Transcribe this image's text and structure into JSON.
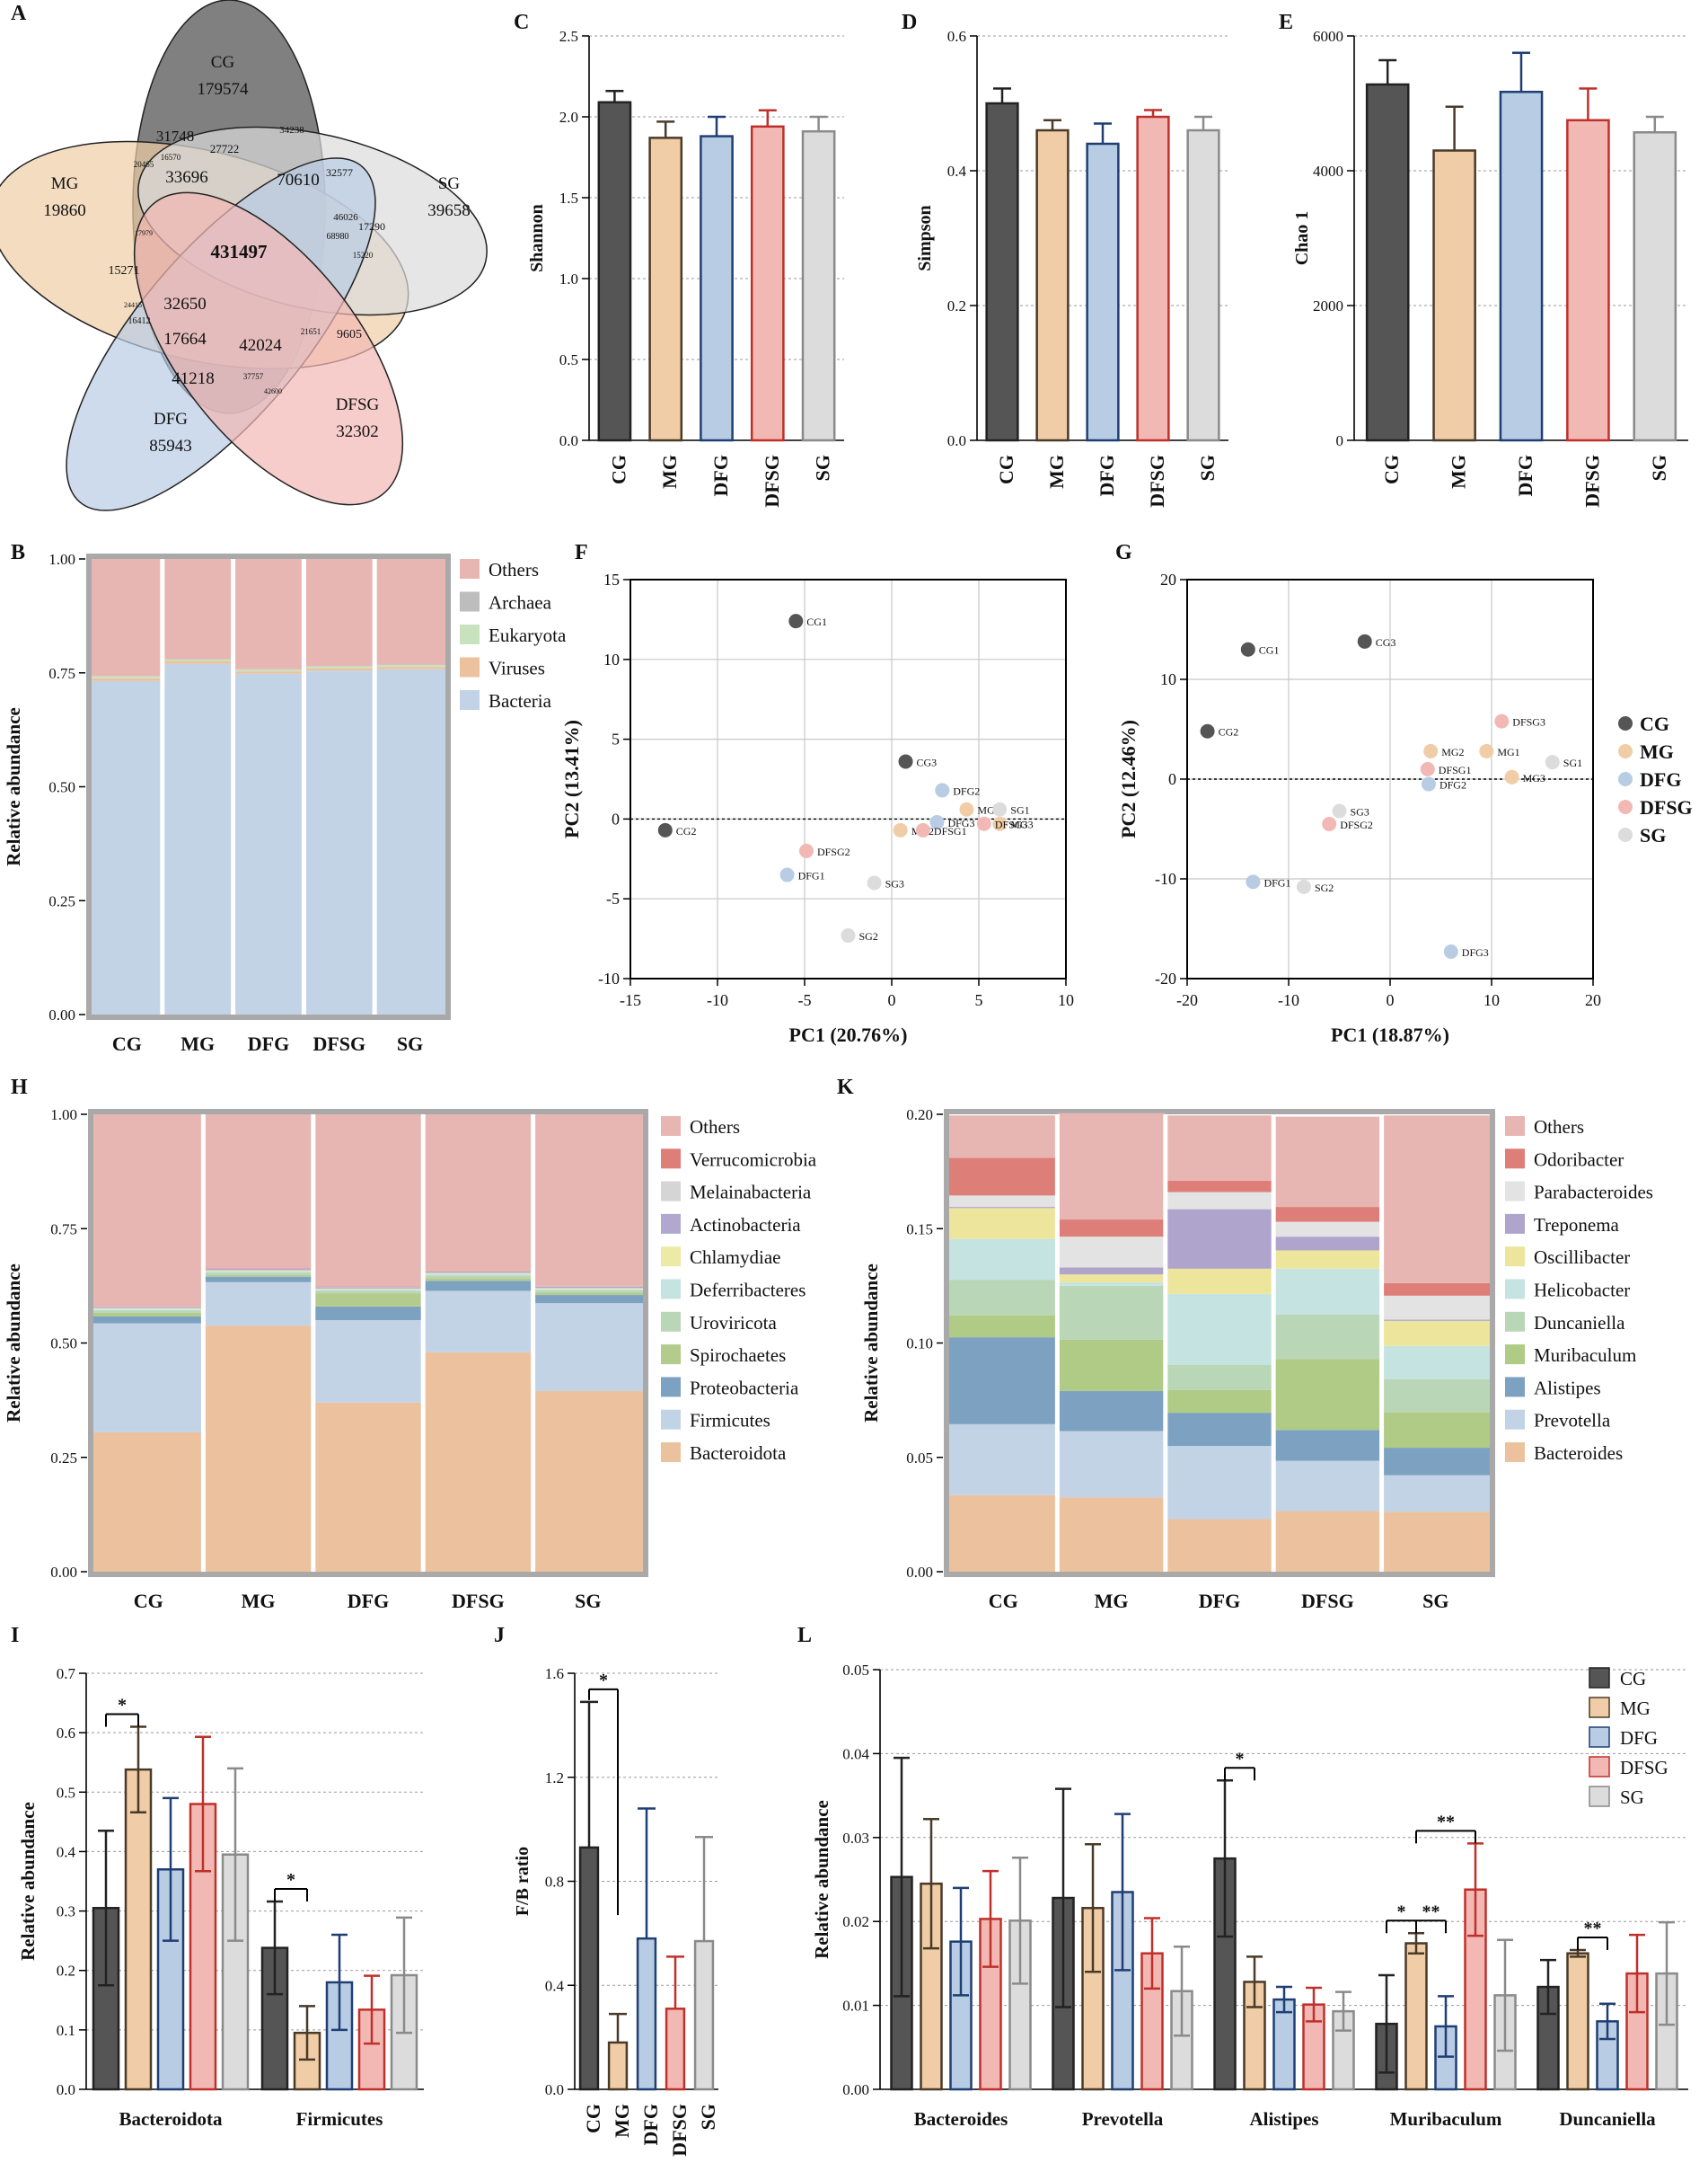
{
  "colors": {
    "CG": "#555555",
    "MG": "#F0CDA6",
    "DFG": "#B8CCE4",
    "DFSG": "#F2B8B4",
    "SG": "#DCDCDC",
    "CG_line": "#222222",
    "MG_line": "#4a3a28",
    "DFG_line": "#1f3f74",
    "DFSG_line": "#c0302b",
    "SG_line": "#8a8a8a",
    "Others": "#E8B6B2",
    "Archaea": "#BDBDBD",
    "Eukaryota": "#C9E2BE",
    "Viruses": "#EBC29D",
    "Bacteria": "#C3D3E6",
    "Verrucomicrobia": "#DE7E78",
    "Melainabacteria": "#D5D5D5",
    "Actinobacteria": "#B1A8CF",
    "Chlamydiae": "#EDEAA8",
    "Deferribacteres": "#C5E3E0",
    "Uroviricota": "#B9D6B7",
    "Spirochaetes": "#B3CC8D",
    "Proteobacteria": "#7DA2C1",
    "Firmicutes": "#C3D3E6",
    "Bacteroidota": "#EBC29D",
    "Odoribacter": "#DE7E78",
    "Parabacteroides": "#E3E3E3",
    "Treponema": "#AFA4CC",
    "Oscillibacter": "#EDE59B",
    "Helicobacter": "#C5E3E0",
    "Duncaniella": "#B9D6B7",
    "Muribaculum": "#AFCB85",
    "Alistipes": "#7DA2C1",
    "Prevotella": "#C3D3E6",
    "Bacteroides": "#EBC29D"
  },
  "groups": [
    "CG",
    "MG",
    "DFG",
    "DFSG",
    "SG"
  ],
  "venn": {
    "panel": "A",
    "sets": [
      {
        "name": "CG",
        "unique": "179574"
      },
      {
        "name": "MG",
        "unique": "19860"
      },
      {
        "name": "SG",
        "unique": "39658"
      },
      {
        "name": "DFG",
        "unique": "85943"
      },
      {
        "name": "DFSG",
        "unique": "32302"
      }
    ],
    "core": "431497",
    "others": [
      "31748",
      "27722",
      "34238",
      "33696",
      "70610",
      "32577",
      "20465",
      "16570",
      "17979",
      "15271",
      "46026",
      "17290",
      "68980",
      "15220",
      "24415",
      "32650",
      "16412",
      "17664",
      "42024",
      "21651",
      "9605",
      "41218",
      "37757",
      "42600"
    ]
  },
  "chart_data": [
    {
      "panel": "C",
      "type": "bar",
      "ylabel": "Shannon",
      "categories": [
        "CG",
        "MG",
        "DFG",
        "DFSG",
        "SG"
      ],
      "values": [
        2.09,
        1.87,
        1.88,
        1.94,
        1.91
      ],
      "errors": [
        0.07,
        0.1,
        0.12,
        0.1,
        0.09
      ],
      "ylim": [
        0,
        2.5
      ],
      "yticks": [
        "0.0",
        "0.5",
        "1.0",
        "1.5",
        "2.0",
        "2.5"
      ]
    },
    {
      "panel": "D",
      "type": "bar",
      "ylabel": "Simpson",
      "categories": [
        "CG",
        "MG",
        "DFG",
        "DFSG",
        "SG"
      ],
      "values": [
        0.5,
        0.46,
        0.44,
        0.48,
        0.46
      ],
      "errors": [
        0.022,
        0.015,
        0.03,
        0.01,
        0.02
      ],
      "ylim": [
        0,
        0.6
      ],
      "yticks": [
        "0.0",
        "0.2",
        "0.4",
        "0.6"
      ]
    },
    {
      "panel": "E",
      "type": "bar",
      "ylabel": "Chao 1",
      "categories": [
        "CG",
        "MG",
        "DFG",
        "DFSG",
        "SG"
      ],
      "values": [
        5280,
        4300,
        5170,
        4750,
        4570
      ],
      "errors": [
        360,
        650,
        580,
        470,
        230
      ],
      "ylim": [
        0,
        6000
      ],
      "yticks": [
        "0",
        "2000",
        "4000",
        "6000"
      ]
    },
    {
      "panel": "B",
      "type": "stacked-bar",
      "ylabel": "Relative abundance",
      "categories": [
        "CG",
        "MG",
        "DFG",
        "DFSG",
        "SG"
      ],
      "series": [
        {
          "name": "Bacteria",
          "values": [
            0.732,
            0.77,
            0.748,
            0.755,
            0.758
          ]
        },
        {
          "name": "Viruses",
          "values": [
            0.006,
            0.006,
            0.005,
            0.005,
            0.005
          ]
        },
        {
          "name": "Eukaryota",
          "values": [
            0.004,
            0.004,
            0.004,
            0.004,
            0.004
          ]
        },
        {
          "name": "Archaea",
          "values": [
            0.001,
            0.001,
            0.001,
            0.001,
            0.001
          ]
        },
        {
          "name": "Others",
          "values": [
            0.257,
            0.219,
            0.242,
            0.235,
            0.232
          ]
        }
      ],
      "legend": [
        "Others",
        "Archaea",
        "Eukaryota",
        "Viruses",
        "Bacteria"
      ],
      "ylim": [
        0,
        1
      ],
      "yticks": [
        "0.00",
        "0.25",
        "0.50",
        "0.75",
        "1.00"
      ]
    },
    {
      "panel": "F",
      "type": "scatter",
      "xlabel": "PC1 (20.76%)",
      "ylabel": "PC2 (13.41%)",
      "xlim": [
        -15,
        10
      ],
      "ylim": [
        -10,
        15
      ],
      "xticks": [
        "-15",
        "-10",
        "-5",
        "0",
        "5",
        "10"
      ],
      "yticks": [
        "-10",
        "-5",
        "0",
        "5",
        "10",
        "15"
      ],
      "points": [
        {
          "label": "CG1",
          "group": "CG",
          "x": -5.5,
          "y": 12.4
        },
        {
          "label": "CG2",
          "group": "CG",
          "x": -13,
          "y": -0.7
        },
        {
          "label": "CG3",
          "group": "CG",
          "x": 0.8,
          "y": 3.6
        },
        {
          "label": "MG1",
          "group": "MG",
          "x": 4.3,
          "y": 0.6
        },
        {
          "label": "MG2",
          "group": "MG",
          "x": 0.5,
          "y": -0.7
        },
        {
          "label": "MG3",
          "group": "MG",
          "x": 6.2,
          "y": -0.3
        },
        {
          "label": "DFG1",
          "group": "DFG",
          "x": -6,
          "y": -3.5
        },
        {
          "label": "DFG2",
          "group": "DFG",
          "x": 2.9,
          "y": 1.8
        },
        {
          "label": "DFG3",
          "group": "DFG",
          "x": 2.6,
          "y": -0.2
        },
        {
          "label": "DFSG1",
          "group": "DFSG",
          "x": 1.8,
          "y": -0.7
        },
        {
          "label": "DFSG2",
          "group": "DFSG",
          "x": -4.9,
          "y": -2
        },
        {
          "label": "DFSG3",
          "group": "DFSG",
          "x": 5.3,
          "y": -0.3
        },
        {
          "label": "SG1",
          "group": "SG",
          "x": 6.2,
          "y": 0.6
        },
        {
          "label": "SG2",
          "group": "SG",
          "x": -2.5,
          "y": -7.3
        },
        {
          "label": "SG3",
          "group": "SG",
          "x": -1,
          "y": -4
        }
      ]
    },
    {
      "panel": "G",
      "type": "scatter",
      "xlabel": "PC1 (18.87%)",
      "ylabel": "PC2 (12.46%)",
      "xlim": [
        -20,
        20
      ],
      "ylim": [
        -20,
        20
      ],
      "xticks": [
        "-20",
        "-10",
        "0",
        "10",
        "20"
      ],
      "yticks": [
        "-20",
        "-10",
        "0",
        "10",
        "20"
      ],
      "points": [
        {
          "label": "CG1",
          "group": "CG",
          "x": -14,
          "y": 13
        },
        {
          "label": "CG2",
          "group": "CG",
          "x": -18,
          "y": 4.8
        },
        {
          "label": "CG3",
          "group": "CG",
          "x": -2.5,
          "y": 13.8
        },
        {
          "label": "MG1",
          "group": "MG",
          "x": 9.5,
          "y": 2.8
        },
        {
          "label": "MG2",
          "group": "MG",
          "x": 4,
          "y": 2.8
        },
        {
          "label": "MG3",
          "group": "MG",
          "x": 12,
          "y": 0.2
        },
        {
          "label": "DFG1",
          "group": "DFG",
          "x": -13.5,
          "y": -10.3
        },
        {
          "label": "DFG2",
          "group": "DFG",
          "x": 3.8,
          "y": -0.5
        },
        {
          "label": "DFG3",
          "group": "DFG",
          "x": 6,
          "y": -17.3
        },
        {
          "label": "DFSG1",
          "group": "DFSG",
          "x": 3.7,
          "y": 1
        },
        {
          "label": "DFSG2",
          "group": "DFSG",
          "x": -6,
          "y": -4.5
        },
        {
          "label": "DFSG3",
          "group": "DFSG",
          "x": 11,
          "y": 5.8
        },
        {
          "label": "SG1",
          "group": "SG",
          "x": 16,
          "y": 1.7
        },
        {
          "label": "SG2",
          "group": "SG",
          "x": -8.5,
          "y": -10.8
        },
        {
          "label": "SG3",
          "group": "SG",
          "x": -5,
          "y": -3.2
        }
      ],
      "legend": [
        "CG",
        "MG",
        "DFG",
        "DFSG",
        "SG"
      ]
    },
    {
      "panel": "H",
      "type": "stacked-bar",
      "ylabel": "Relative abundance",
      "categories": [
        "CG",
        "MG",
        "DFG",
        "DFSG",
        "SG"
      ],
      "series": [
        {
          "name": "Bacteroidota",
          "values": [
            0.305,
            0.538,
            0.37,
            0.48,
            0.395
          ]
        },
        {
          "name": "Firmicutes",
          "values": [
            0.238,
            0.095,
            0.18,
            0.134,
            0.192
          ]
        },
        {
          "name": "Proteobacteria",
          "values": [
            0.015,
            0.012,
            0.03,
            0.022,
            0.018
          ]
        },
        {
          "name": "Spirochaetes",
          "values": [
            0.008,
            0.004,
            0.028,
            0.006,
            0.005
          ]
        },
        {
          "name": "Uroviricota",
          "values": [
            0.005,
            0.005,
            0.006,
            0.006,
            0.005
          ]
        },
        {
          "name": "Deferribacteres",
          "values": [
            0.003,
            0.003,
            0.003,
            0.003,
            0.003
          ]
        },
        {
          "name": "Chlamydiae",
          "values": [
            0.002,
            0.002,
            0.002,
            0.002,
            0.002
          ]
        },
        {
          "name": "Actinobacteria",
          "values": [
            0.003,
            0.003,
            0.003,
            0.003,
            0.003
          ]
        },
        {
          "name": "Melainabacteria",
          "values": [
            0.001,
            0.001,
            0.001,
            0.001,
            0.001
          ]
        },
        {
          "name": "Verrucomicrobia",
          "values": [
            0.001,
            0.001,
            0.001,
            0.001,
            0.001
          ]
        },
        {
          "name": "Others",
          "values": [
            0.419,
            0.336,
            0.376,
            0.342,
            0.375
          ]
        }
      ],
      "legend": [
        "Others",
        "Verrucomicrobia",
        "Melainabacteria",
        "Actinobacteria",
        "Chlamydiae",
        "Deferribacteres",
        "Uroviricota",
        "Spirochaetes",
        "Proteobacteria",
        "Firmicutes",
        "Bacteroidota"
      ],
      "ylim": [
        0,
        1
      ],
      "yticks": [
        "0.00",
        "0.25",
        "0.50",
        "0.75",
        "1.00"
      ]
    },
    {
      "panel": "K",
      "type": "stacked-bar",
      "ylabel": "Relative abundance",
      "categories": [
        "CG",
        "MG",
        "DFG",
        "DFSG",
        "SG"
      ],
      "series": [
        {
          "name": "Bacteroides",
          "values": [
            0.0335,
            0.0325,
            0.023,
            0.0265,
            0.0262
          ]
        },
        {
          "name": "Prevotella",
          "values": [
            0.031,
            0.029,
            0.032,
            0.022,
            0.016
          ]
        },
        {
          "name": "Alistipes",
          "values": [
            0.038,
            0.0175,
            0.0145,
            0.0135,
            0.012
          ]
        },
        {
          "name": "Muribaculum",
          "values": [
            0.0095,
            0.0225,
            0.01,
            0.031,
            0.0155
          ]
        },
        {
          "name": "Duncaniella",
          "values": [
            0.0155,
            0.0235,
            0.011,
            0.0195,
            0.0145
          ]
        },
        {
          "name": "Helicobacter",
          "values": [
            0.018,
            0.0015,
            0.031,
            0.02,
            0.0145
          ]
        },
        {
          "name": "Oscillibacter",
          "values": [
            0.0135,
            0.0035,
            0.011,
            0.008,
            0.011
          ]
        },
        {
          "name": "Treponema",
          "values": [
            0.0005,
            0.003,
            0.026,
            0.006,
            0.0005
          ]
        },
        {
          "name": "Parabacteroides",
          "values": [
            0.005,
            0.0135,
            0.0075,
            0.0065,
            0.0105
          ]
        },
        {
          "name": "Odoribacter",
          "values": [
            0.0165,
            0.0075,
            0.005,
            0.0065,
            0.0055
          ]
        },
        {
          "name": "Others",
          "values": [
            0.0185,
            0.0465,
            0.0285,
            0.0395,
            0.0733
          ]
        }
      ],
      "legend": [
        "Others",
        "Odoribacter",
        "Parabacteroides",
        "Treponema",
        "Oscillibacter",
        "Helicobacter",
        "Duncaniella",
        "Muribaculum",
        "Alistipes",
        "Prevotella",
        "Bacteroides"
      ],
      "ylim": [
        0,
        0.2
      ],
      "yticks": [
        "0.00",
        "0.05",
        "0.10",
        "0.15",
        "0.20"
      ]
    },
    {
      "panel": "I",
      "type": "grouped-bar",
      "ylabel": "Relative abundance",
      "categories": [
        "Bacteroidota",
        "Firmicutes"
      ],
      "ylim": [
        0,
        0.7
      ],
      "yticks": [
        "0.0",
        "0.1",
        "0.2",
        "0.3",
        "0.4",
        "0.5",
        "0.6",
        "0.7"
      ],
      "series": [
        {
          "name": "CG",
          "values": [
            0.305,
            0.238
          ],
          "errors": [
            0.13,
            0.078
          ]
        },
        {
          "name": "MG",
          "values": [
            0.538,
            0.095
          ],
          "errors": [
            0.072,
            0.045
          ]
        },
        {
          "name": "DFG",
          "values": [
            0.37,
            0.18
          ],
          "errors": [
            0.12,
            0.08
          ]
        },
        {
          "name": "DFSG",
          "values": [
            0.48,
            0.134
          ],
          "errors": [
            0.113,
            0.057
          ]
        },
        {
          "name": "SG",
          "values": [
            0.395,
            0.192
          ],
          "errors": [
            0.145,
            0.097
          ]
        }
      ],
      "annotations": [
        {
          "text": "*",
          "category": "Bacteroidota",
          "from": "CG",
          "to": "MG"
        },
        {
          "text": "*",
          "category": "Firmicutes",
          "from": "CG",
          "to": "MG"
        }
      ]
    },
    {
      "panel": "J",
      "type": "bar",
      "ylabel": "F/B ratio",
      "categories": [
        "CG",
        "MG",
        "DFG",
        "DFSG",
        "SG"
      ],
      "values": [
        0.93,
        0.18,
        0.58,
        0.31,
        0.57
      ],
      "errors": [
        0.56,
        0.11,
        0.5,
        0.2,
        0.4
      ],
      "ylim": [
        0,
        1.6
      ],
      "yticks": [
        "0.0",
        "0.4",
        "0.8",
        "1.2",
        "1.6"
      ],
      "annotations": [
        {
          "text": "*",
          "from": "CG",
          "to": "MG"
        }
      ]
    },
    {
      "panel": "L",
      "type": "grouped-bar",
      "ylabel": "Relative abundance",
      "categories": [
        "Bacteroides",
        "Prevotella",
        "Alistipes",
        "Muribaculum",
        "Duncaniella"
      ],
      "ylim": [
        0,
        0.05
      ],
      "yticks": [
        "0.00",
        "0.01",
        "0.02",
        "0.03",
        "0.04",
        "0.05"
      ],
      "series": [
        {
          "name": "CG",
          "values": [
            0.0253,
            0.0228,
            0.0275,
            0.0078,
            0.0122
          ],
          "errors": [
            0.0142,
            0.013,
            0.0093,
            0.0058,
            0.0032
          ]
        },
        {
          "name": "MG",
          "values": [
            0.0245,
            0.0216,
            0.0128,
            0.0174,
            0.0162
          ],
          "errors": [
            0.0077,
            0.0076,
            0.003,
            0.0012,
            0.0004
          ]
        },
        {
          "name": "DFG",
          "values": [
            0.0176,
            0.0235,
            0.0107,
            0.0075,
            0.0081
          ],
          "errors": [
            0.0064,
            0.0093,
            0.0015,
            0.0036,
            0.0021
          ]
        },
        {
          "name": "DFSG",
          "values": [
            0.0203,
            0.0162,
            0.0101,
            0.0238,
            0.0138
          ],
          "errors": [
            0.0057,
            0.0042,
            0.002,
            0.0055,
            0.0046
          ]
        },
        {
          "name": "SG",
          "values": [
            0.0201,
            0.0117,
            0.0093,
            0.0112,
            0.0138
          ],
          "errors": [
            0.0075,
            0.0053,
            0.0023,
            0.0066,
            0.0061
          ]
        }
      ],
      "legend": [
        "CG",
        "MG",
        "DFG",
        "DFSG",
        "SG"
      ],
      "annotations": [
        {
          "text": "*",
          "category": "Alistipes",
          "from": "CG",
          "to": "MG"
        },
        {
          "text": "*",
          "category": "Muribaculum",
          "from": "CG",
          "to": "MG"
        },
        {
          "text": "**",
          "category": "Muribaculum",
          "from": "MG",
          "to": "DFG"
        },
        {
          "text": "**",
          "category": "Muribaculum",
          "from": "MG",
          "to": "DFSG"
        },
        {
          "text": "**",
          "category": "Duncaniella",
          "from": "MG",
          "to": "DFG"
        }
      ]
    }
  ]
}
